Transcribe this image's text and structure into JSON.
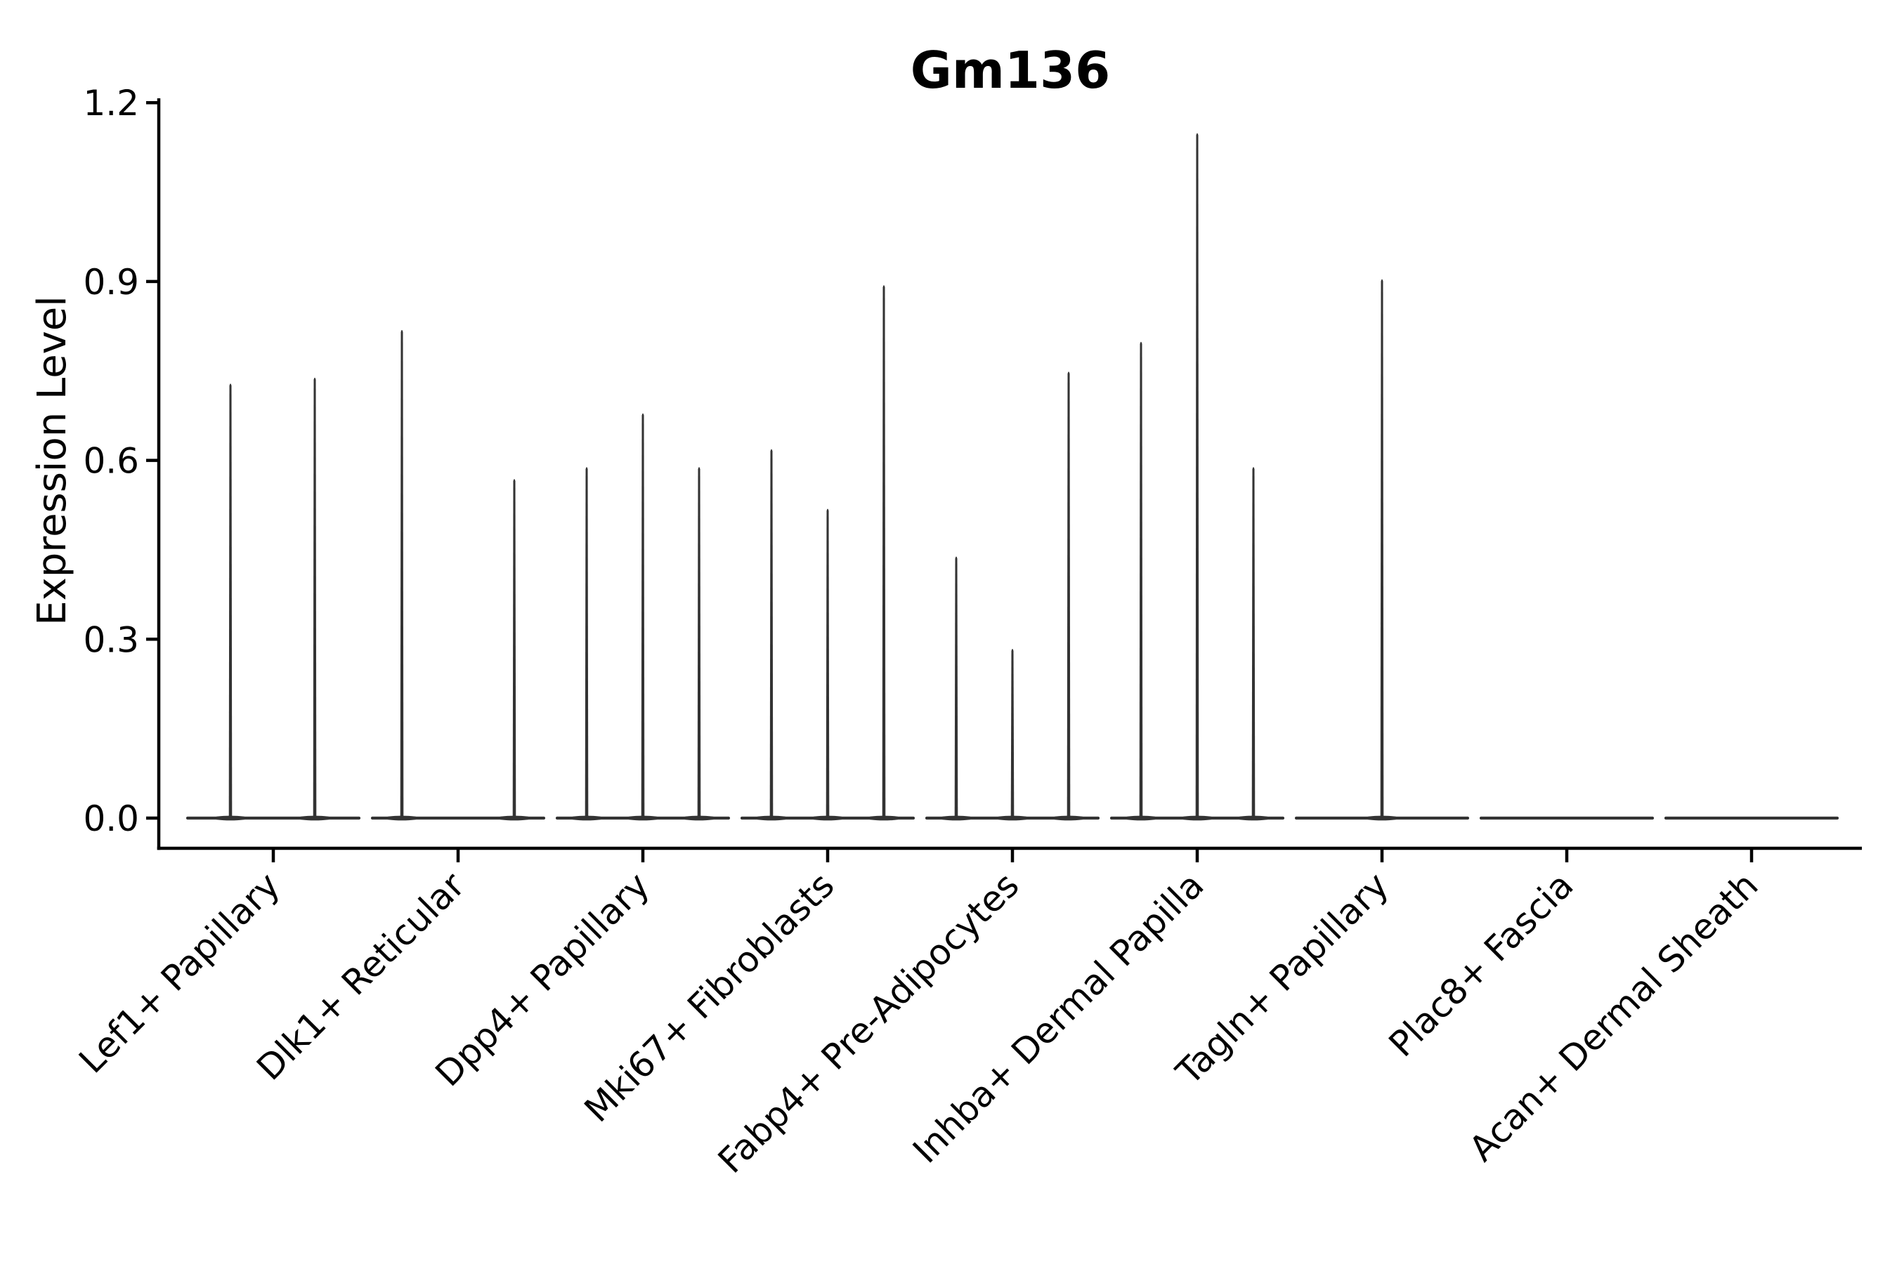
{
  "chart_data": {
    "type": "violin",
    "title": "Gm136",
    "ylabel": "Expression Level",
    "xlabel": "",
    "ylim": [
      -0.05,
      1.2
    ],
    "yticks": [
      0.0,
      0.3,
      0.6,
      0.9,
      1.2
    ],
    "ytick_labels": [
      "0.0",
      "0.3",
      "0.6",
      "0.9",
      "1.2"
    ],
    "grid": false,
    "legend": null,
    "categories": [
      "Lef1+ Papillary",
      "Dlk1+ Reticular",
      "Dpp4+ Papillary",
      "Mki67+ Fibroblasts",
      "Fabp4+ Pre-Adipocytes",
      "Inhba+ Dermal Papilla",
      "Tagln+ Papillary",
      "Plac8+ Fascia",
      "Acan+ Dermal Sheath"
    ],
    "violins": [
      {
        "category": "Lef1+ Papillary",
        "spikes": [
          {
            "offset": -61,
            "max": 0.73
          },
          {
            "offset": 59,
            "max": 0.74
          }
        ]
      },
      {
        "category": "Dlk1+ Reticular",
        "spikes": [
          {
            "offset": -80,
            "max": 0.82
          },
          {
            "offset": 80,
            "max": 0.57
          }
        ]
      },
      {
        "category": "Dpp4+ Papillary",
        "spikes": [
          {
            "offset": -80,
            "max": 0.59
          },
          {
            "offset": 0,
            "max": 0.68
          },
          {
            "offset": 80,
            "max": 0.59
          }
        ]
      },
      {
        "category": "Mki67+ Fibroblasts",
        "spikes": [
          {
            "offset": -80,
            "max": 0.62
          },
          {
            "offset": 0,
            "max": 0.52
          },
          {
            "offset": 80,
            "max": 0.895
          }
        ]
      },
      {
        "category": "Fabp4+ Pre-Adipocytes",
        "spikes": [
          {
            "offset": -80,
            "max": 0.44
          },
          {
            "offset": 0,
            "max": 0.285
          },
          {
            "offset": 80,
            "max": 0.75
          }
        ]
      },
      {
        "category": "Inhba+ Dermal Papilla",
        "spikes": [
          {
            "offset": -80,
            "max": 0.8
          },
          {
            "offset": 0,
            "max": 1.15
          },
          {
            "offset": 80,
            "max": 0.59
          }
        ]
      },
      {
        "category": "Tagln+ Papillary",
        "spikes": [
          {
            "offset": 0,
            "max": 0.905
          }
        ]
      },
      {
        "category": "Plac8+ Fascia",
        "spikes": []
      },
      {
        "category": "Acan+ Dermal Sheath",
        "spikes": []
      }
    ],
    "colors": {
      "violin": "#333333",
      "axis": "#000000",
      "text": "#000000",
      "background": "#ffffff"
    }
  }
}
